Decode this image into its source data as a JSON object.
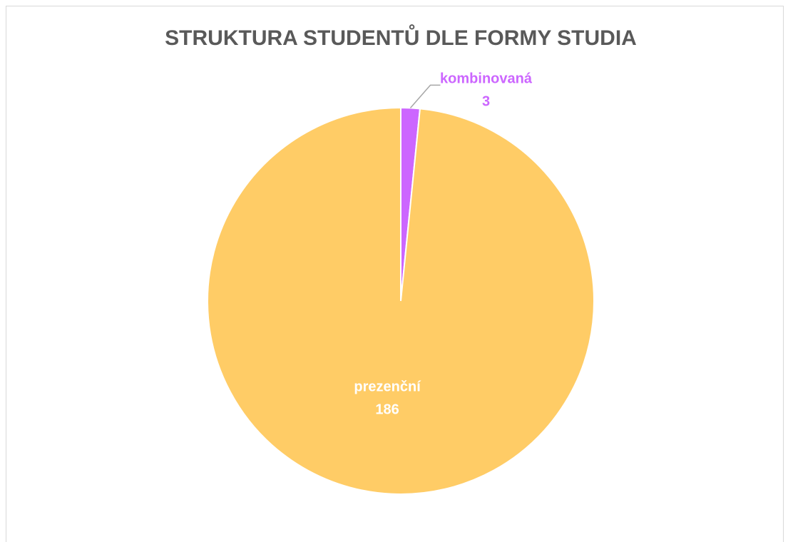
{
  "chart_data": {
    "type": "pie",
    "title": "STRUKTURA STUDENTŮ DLE FORMY STUDIA",
    "categories": [
      "kombinovaná",
      "prezenční"
    ],
    "values": [
      3,
      186
    ],
    "colors": [
      "#cc66ff",
      "#ffcc66"
    ]
  }
}
